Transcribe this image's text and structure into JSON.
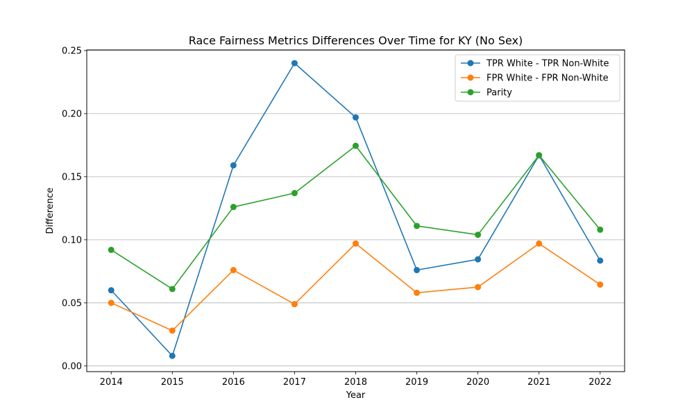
{
  "chart_data": {
    "type": "line",
    "title": "Race Fairness Metrics Differences Over Time for KY (No Sex)",
    "xlabel": "Year",
    "ylabel": "Difference",
    "x": [
      2014,
      2015,
      2016,
      2017,
      2018,
      2019,
      2020,
      2021,
      2022
    ],
    "ylim": [
      -0.0045,
      0.2505
    ],
    "yticks": [
      0.0,
      0.05,
      0.1,
      0.15,
      0.2,
      0.25
    ],
    "ytick_labels": [
      "0.00",
      "0.05",
      "0.10",
      "0.15",
      "0.20",
      "0.25"
    ],
    "grid": "horizontal",
    "legend_position": "top-right",
    "series": [
      {
        "name": "TPR White - TPR Non-White",
        "color": "#1f77b4",
        "values": [
          0.06,
          0.008,
          0.159,
          0.24,
          0.197,
          0.076,
          0.0845,
          0.167,
          0.0835
        ]
      },
      {
        "name": "FPR White - FPR Non-White",
        "color": "#ff7f0e",
        "values": [
          0.05,
          0.028,
          0.076,
          0.049,
          0.097,
          0.058,
          0.0625,
          0.097,
          0.0645
        ]
      },
      {
        "name": "Parity",
        "color": "#2ca02c",
        "values": [
          0.092,
          0.061,
          0.126,
          0.137,
          0.1745,
          0.111,
          0.104,
          0.167,
          0.108
        ]
      }
    ]
  }
}
